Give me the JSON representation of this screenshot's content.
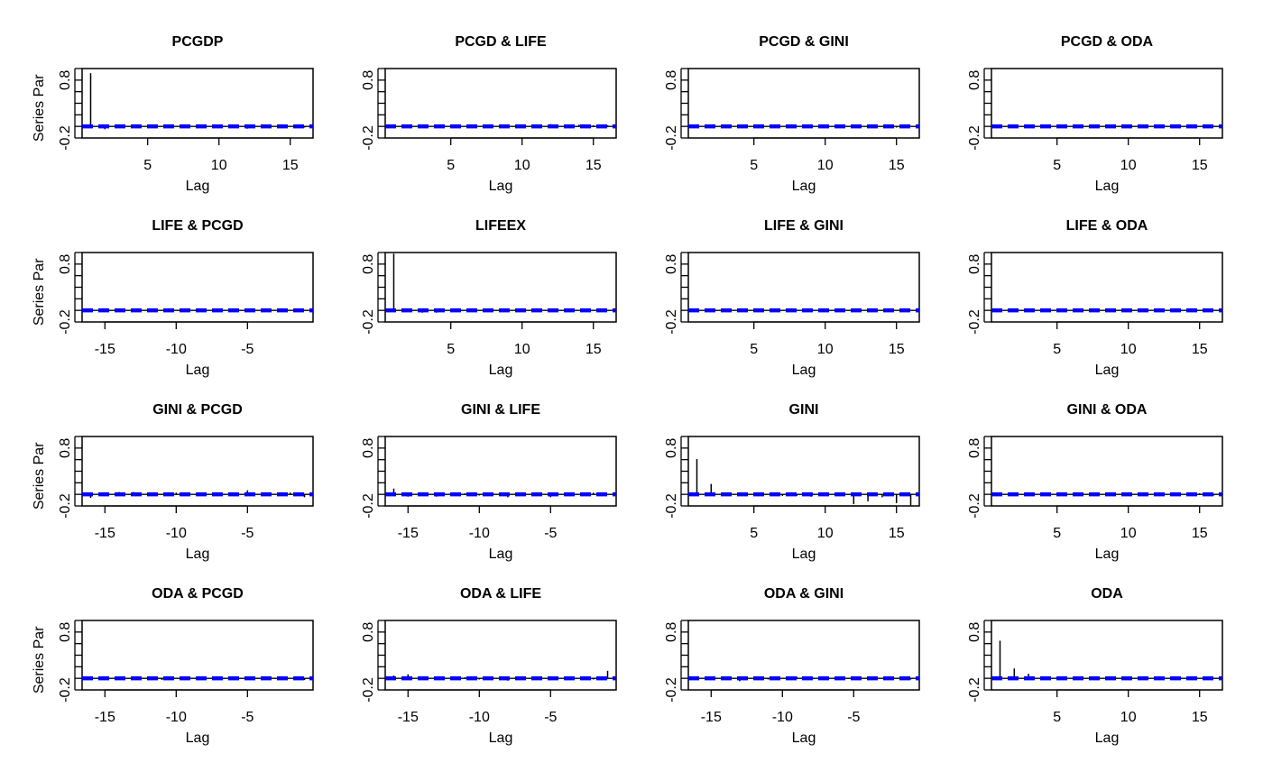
{
  "chart_data": {
    "type": "bar",
    "ylabel": "Panel Series Partial ACF",
    "xlabel": "Lag",
    "ylim": [
      -0.2,
      1.0
    ],
    "yticks": [
      -0.2,
      0.0,
      0.2,
      0.4,
      0.6,
      0.8,
      1.0
    ],
    "ytick_labels": [
      "-0.2",
      "0.8"
    ],
    "ci": 0.012,
    "colors": {
      "bars": "#000000",
      "ci": "#0000ff"
    },
    "panels": [
      {
        "title": "PCGDP",
        "lags": "pos",
        "xticks": [
          "5",
          "10",
          "15"
        ],
        "values": [
          0.92,
          -0.05,
          -0.02,
          -0.02,
          0.01,
          0,
          0,
          0,
          -0.02,
          0,
          0,
          -0.04,
          0,
          0,
          0,
          -0.02
        ]
      },
      {
        "title": "PCGD & LIFE",
        "lags": "pos",
        "xticks": [
          "5",
          "10",
          "15"
        ],
        "values": [
          0.02,
          0.01,
          0,
          0.01,
          0,
          0.01,
          0.01,
          0.01,
          0.02,
          0.01,
          0.01,
          0.04,
          0.02,
          0.03,
          0.02,
          0.02
        ]
      },
      {
        "title": "PCGD & GINI",
        "lags": "pos",
        "xticks": [
          "5",
          "10",
          "15"
        ],
        "values": [
          0,
          0,
          0,
          0,
          0,
          0,
          0,
          0,
          0,
          0,
          0,
          0,
          0,
          0,
          -0.02,
          0
        ]
      },
      {
        "title": "PCGD & ODA",
        "lags": "pos",
        "xticks": [
          "5",
          "10",
          "15"
        ],
        "values": [
          0,
          0,
          0,
          0,
          0,
          0,
          0,
          0,
          0,
          0,
          0,
          0,
          0,
          0,
          0,
          -0.01
        ]
      },
      {
        "title": "LIFE & PCGD",
        "lags": "neg",
        "xticks": [
          "-15",
          "-10",
          "-5"
        ],
        "values": [
          0.01,
          0.01,
          0,
          -0.01,
          -0.02,
          0,
          0,
          0,
          0,
          0,
          0,
          0,
          0,
          0,
          0,
          0
        ]
      },
      {
        "title": "LIFEEX",
        "lags": "pos",
        "xticks": [
          "5",
          "10",
          "15"
        ],
        "values": [
          0.98,
          -0.01,
          -0.04,
          -0.04,
          0,
          0,
          0,
          0,
          0,
          0,
          0,
          0.02,
          0,
          0,
          0,
          0
        ]
      },
      {
        "title": "LIFE & GINI",
        "lags": "pos",
        "xticks": [
          "5",
          "10",
          "15"
        ],
        "values": [
          0,
          0,
          0,
          0,
          0,
          0,
          0,
          0,
          0,
          0,
          0,
          0,
          0,
          0,
          0,
          0
        ]
      },
      {
        "title": "LIFE & ODA",
        "lags": "pos",
        "xticks": [
          "5",
          "10",
          "15"
        ],
        "values": [
          0,
          0,
          0,
          0,
          0,
          0,
          0,
          0,
          0,
          0,
          0,
          0,
          0,
          0,
          0,
          0
        ]
      },
      {
        "title": "GINI & PCGD",
        "lags": "neg",
        "xticks": [
          "-15",
          "-10",
          "-5"
        ],
        "values": [
          -0.06,
          0.03,
          0.04,
          0.04,
          0.03,
          -0.01,
          0.03,
          0.01,
          0,
          0,
          0.03,
          0.07,
          -0.03,
          0.01,
          0.03,
          -0.05
        ]
      },
      {
        "title": "GINI & LIFE",
        "lags": "neg",
        "xticks": [
          "-15",
          "-10",
          "-5"
        ],
        "values": [
          0.1,
          -0.04,
          -0.03,
          -0.04,
          0.02,
          0.02,
          -0.02,
          -0.01,
          -0.05,
          0.01,
          0.01,
          -0.05,
          0.02,
          0.01,
          0.03,
          0.01
        ]
      },
      {
        "title": "GINI",
        "lags": "pos",
        "xticks": [
          "5",
          "10",
          "15"
        ],
        "values": [
          0.61,
          0.18,
          0.01,
          -0.02,
          0,
          0,
          -0.03,
          -0.03,
          -0.04,
          0,
          -0.03,
          -0.17,
          -0.12,
          -0.05,
          -0.15,
          -0.19
        ]
      },
      {
        "title": "GINI & ODA",
        "lags": "pos",
        "xticks": [
          "5",
          "10",
          "15"
        ],
        "values": [
          0.01,
          0,
          -0.02,
          0,
          0.01,
          0,
          0,
          0.01,
          0.02,
          0.01,
          0.03,
          0.01,
          0.02,
          0.01,
          0.02,
          -0.02
        ]
      },
      {
        "title": "ODA & PCGD",
        "lags": "neg",
        "xticks": [
          "-15",
          "-10",
          "-5"
        ],
        "values": [
          -0.02,
          -0.03,
          -0.01,
          -0.02,
          0,
          -0.03,
          0.01,
          0,
          0.03,
          0.01,
          0,
          0.03,
          0,
          0,
          0,
          -0.03
        ]
      },
      {
        "title": "ODA & LIFE",
        "lags": "neg",
        "xticks": [
          "-15",
          "-10",
          "-5"
        ],
        "values": [
          0.05,
          0.07,
          0,
          0,
          0,
          0.02,
          -0.02,
          0,
          -0.04,
          -0.02,
          0.02,
          -0.03,
          0,
          0.01,
          -0.02,
          0.13
        ]
      },
      {
        "title": "ODA & GINI",
        "lags": "neg",
        "xticks": [
          "-15",
          "-10",
          "-5"
        ],
        "values": [
          0,
          0,
          0.02,
          -0.05,
          0,
          -0.02,
          0,
          0.03,
          0,
          0,
          0,
          -0.02,
          0,
          0,
          0,
          -0.02
        ]
      },
      {
        "title": "ODA",
        "lags": "pos",
        "xticks": [
          "5",
          "10",
          "15"
        ],
        "values": [
          0.65,
          0.17,
          0.08,
          0,
          0,
          0,
          0,
          0,
          0,
          0,
          0,
          0,
          0,
          0,
          0,
          0
        ]
      }
    ]
  }
}
